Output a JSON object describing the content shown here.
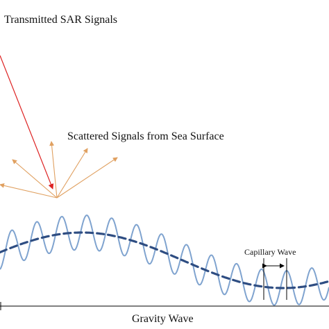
{
  "labels": {
    "transmitted": "Transmitted SAR Signals",
    "scattered": "Scattered Signals from Sea Surface",
    "capillary": "Capillary Wave",
    "gravity": "Gravity Wave"
  },
  "colors": {
    "incident_arrow": "#dd2222",
    "scattered_arrows": "#e0a060",
    "gravity_wave": "#2e4d82",
    "capillary_wave": "#7fa3cf",
    "annotation_lines": "#000000"
  }
}
